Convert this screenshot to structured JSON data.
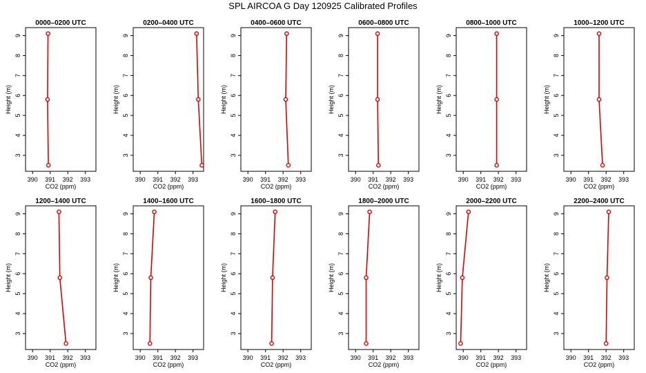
{
  "figure_title": "SPL AIRCOA G  Day 120925  Calibrated Profiles",
  "colors": {
    "profile": "#dd0000",
    "axis": "#000000",
    "background": "#ffffff"
  },
  "chart_data": [
    {
      "type": "line",
      "title": "0000–0200 UTC",
      "xlabel": "CO2 (ppm)",
      "ylabel": "Height (m)",
      "xlim": [
        389.6,
        393.6
      ],
      "ylim": [
        2.2,
        9.4
      ],
      "xticks": [
        390,
        391,
        392,
        393
      ],
      "yticks": [
        3,
        4,
        5,
        6,
        7,
        8,
        9
      ],
      "grid": false,
      "marker": "open-circle",
      "points": [
        {
          "x": 390.88,
          "y": 9.1
        },
        {
          "x": 390.85,
          "y": 5.8
        },
        {
          "x": 390.9,
          "y": 2.5
        }
      ]
    },
    {
      "type": "line",
      "title": "0200–0400 UTC",
      "xlabel": "CO2 (ppm)",
      "ylabel": "Height (m)",
      "xlim": [
        389.6,
        393.6
      ],
      "ylim": [
        2.2,
        9.4
      ],
      "xticks": [
        390,
        391,
        392,
        393
      ],
      "yticks": [
        3,
        4,
        5,
        6,
        7,
        8,
        9
      ],
      "grid": false,
      "marker": "open-circle",
      "points": [
        {
          "x": 393.2,
          "y": 9.1
        },
        {
          "x": 393.3,
          "y": 5.8
        },
        {
          "x": 393.5,
          "y": 2.5
        }
      ]
    },
    {
      "type": "line",
      "title": "0400–0600 UTC",
      "xlabel": "CO2 (ppm)",
      "ylabel": "Height (m)",
      "xlim": [
        389.6,
        393.6
      ],
      "ylim": [
        2.2,
        9.4
      ],
      "xticks": [
        390,
        391,
        392,
        393
      ],
      "yticks": [
        3,
        4,
        5,
        6,
        7,
        8,
        9
      ],
      "grid": false,
      "marker": "open-circle",
      "points": [
        {
          "x": 392.2,
          "y": 9.1
        },
        {
          "x": 392.15,
          "y": 5.8
        },
        {
          "x": 392.3,
          "y": 2.5
        }
      ]
    },
    {
      "type": "line",
      "title": "0600–0800 UTC",
      "xlabel": "CO2 (ppm)",
      "ylabel": "Height (m)",
      "xlim": [
        389.6,
        393.6
      ],
      "ylim": [
        2.2,
        9.4
      ],
      "xticks": [
        390,
        391,
        392,
        393
      ],
      "yticks": [
        3,
        4,
        5,
        6,
        7,
        8,
        9
      ],
      "grid": false,
      "marker": "open-circle",
      "points": [
        {
          "x": 391.25,
          "y": 9.1
        },
        {
          "x": 391.25,
          "y": 5.8
        },
        {
          "x": 391.3,
          "y": 2.5
        }
      ]
    },
    {
      "type": "line",
      "title": "0800–1000 UTC",
      "xlabel": "CO2 (ppm)",
      "ylabel": "Height (m)",
      "xlim": [
        389.6,
        393.6
      ],
      "ylim": [
        2.2,
        9.4
      ],
      "xticks": [
        390,
        391,
        392,
        393
      ],
      "yticks": [
        3,
        4,
        5,
        6,
        7,
        8,
        9
      ],
      "grid": false,
      "marker": "open-circle",
      "points": [
        {
          "x": 391.9,
          "y": 9.1
        },
        {
          "x": 391.9,
          "y": 5.8
        },
        {
          "x": 391.9,
          "y": 2.5
        }
      ]
    },
    {
      "type": "line",
      "title": "1000–1200 UTC",
      "xlabel": "CO2 (ppm)",
      "ylabel": "Height (m)",
      "xlim": [
        389.6,
        393.6
      ],
      "ylim": [
        2.2,
        9.4
      ],
      "xticks": [
        390,
        391,
        392,
        393
      ],
      "yticks": [
        3,
        4,
        5,
        6,
        7,
        8,
        9
      ],
      "grid": false,
      "marker": "open-circle",
      "points": [
        {
          "x": 391.6,
          "y": 9.1
        },
        {
          "x": 391.6,
          "y": 5.8
        },
        {
          "x": 391.8,
          "y": 2.5
        }
      ]
    },
    {
      "type": "line",
      "title": "1200–1400 UTC",
      "xlabel": "CO2 (ppm)",
      "ylabel": "Height (m)",
      "xlim": [
        389.6,
        393.6
      ],
      "ylim": [
        2.2,
        9.4
      ],
      "xticks": [
        390,
        391,
        392,
        393
      ],
      "yticks": [
        3,
        4,
        5,
        6,
        7,
        8,
        9
      ],
      "grid": false,
      "marker": "open-circle",
      "points": [
        {
          "x": 391.5,
          "y": 9.1
        },
        {
          "x": 391.55,
          "y": 5.8
        },
        {
          "x": 391.9,
          "y": 2.5
        }
      ]
    },
    {
      "type": "line",
      "title": "1400–1600 UTC",
      "xlabel": "CO2 (ppm)",
      "ylabel": "Height (m)",
      "xlim": [
        389.6,
        393.6
      ],
      "ylim": [
        2.2,
        9.4
      ],
      "xticks": [
        390,
        391,
        392,
        393
      ],
      "yticks": [
        3,
        4,
        5,
        6,
        7,
        8,
        9
      ],
      "grid": false,
      "marker": "open-circle",
      "points": [
        {
          "x": 390.8,
          "y": 9.1
        },
        {
          "x": 390.6,
          "y": 5.8
        },
        {
          "x": 390.55,
          "y": 2.5
        }
      ]
    },
    {
      "type": "line",
      "title": "1600–1800 UTC",
      "xlabel": "CO2 (ppm)",
      "ylabel": "Height (m)",
      "xlim": [
        389.6,
        393.6
      ],
      "ylim": [
        2.2,
        9.4
      ],
      "xticks": [
        390,
        391,
        392,
        393
      ],
      "yticks": [
        3,
        4,
        5,
        6,
        7,
        8,
        9
      ],
      "grid": false,
      "marker": "open-circle",
      "points": [
        {
          "x": 391.55,
          "y": 9.1
        },
        {
          "x": 391.4,
          "y": 5.8
        },
        {
          "x": 391.35,
          "y": 2.5
        }
      ]
    },
    {
      "type": "line",
      "title": "1800–2000 UTC",
      "xlabel": "CO2 (ppm)",
      "ylabel": "Height (m)",
      "xlim": [
        389.6,
        393.6
      ],
      "ylim": [
        2.2,
        9.4
      ],
      "xticks": [
        390,
        391,
        392,
        393
      ],
      "yticks": [
        3,
        4,
        5,
        6,
        7,
        8,
        9
      ],
      "grid": false,
      "marker": "open-circle",
      "points": [
        {
          "x": 390.8,
          "y": 9.1
        },
        {
          "x": 390.6,
          "y": 5.8
        },
        {
          "x": 390.6,
          "y": 2.5
        }
      ]
    },
    {
      "type": "line",
      "title": "2000–2200 UTC",
      "xlabel": "CO2 (ppm)",
      "ylabel": "Height (m)",
      "xlim": [
        389.6,
        393.6
      ],
      "ylim": [
        2.2,
        9.4
      ],
      "xticks": [
        390,
        391,
        392,
        393
      ],
      "yticks": [
        3,
        4,
        5,
        6,
        7,
        8,
        9
      ],
      "grid": false,
      "marker": "open-circle",
      "points": [
        {
          "x": 390.3,
          "y": 9.1
        },
        {
          "x": 389.95,
          "y": 5.8
        },
        {
          "x": 389.85,
          "y": 2.5
        }
      ]
    },
    {
      "type": "line",
      "title": "2200–2400 UTC",
      "xlabel": "CO2 (ppm)",
      "ylabel": "Height (m)",
      "xlim": [
        389.6,
        393.6
      ],
      "ylim": [
        2.2,
        9.4
      ],
      "xticks": [
        390,
        391,
        392,
        393
      ],
      "yticks": [
        3,
        4,
        5,
        6,
        7,
        8,
        9
      ],
      "grid": false,
      "marker": "open-circle",
      "points": [
        {
          "x": 392.15,
          "y": 9.1
        },
        {
          "x": 392.05,
          "y": 5.8
        },
        {
          "x": 392.0,
          "y": 2.5
        }
      ]
    }
  ]
}
